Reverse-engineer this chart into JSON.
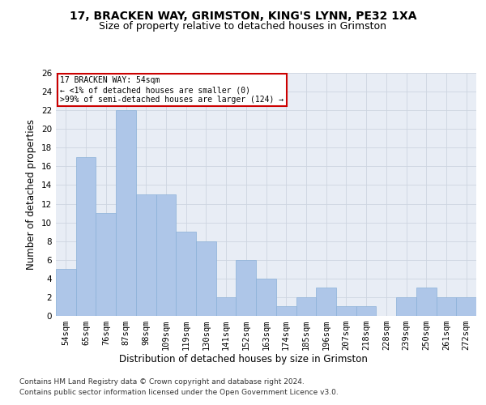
{
  "title1": "17, BRACKEN WAY, GRIMSTON, KING'S LYNN, PE32 1XA",
  "title2": "Size of property relative to detached houses in Grimston",
  "xlabel_bottom": "Distribution of detached houses by size in Grimston",
  "ylabel": "Number of detached properties",
  "footer1": "Contains HM Land Registry data © Crown copyright and database right 2024.",
  "footer2": "Contains public sector information licensed under the Open Government Licence v3.0.",
  "categories": [
    "54sqm",
    "65sqm",
    "76sqm",
    "87sqm",
    "98sqm",
    "109sqm",
    "119sqm",
    "130sqm",
    "141sqm",
    "152sqm",
    "163sqm",
    "174sqm",
    "185sqm",
    "196sqm",
    "207sqm",
    "218sqm",
    "228sqm",
    "239sqm",
    "250sqm",
    "261sqm",
    "272sqm"
  ],
  "values": [
    5,
    17,
    11,
    22,
    13,
    13,
    9,
    8,
    2,
    6,
    4,
    1,
    2,
    3,
    1,
    1,
    0,
    2,
    3,
    2,
    2
  ],
  "bar_color": "#aec6e8",
  "bar_edge_color": "#8ab0d8",
  "annotation_box_text": "17 BRACKEN WAY: 54sqm\n← <1% of detached houses are smaller (0)\n>99% of semi-detached houses are larger (124) →",
  "annotation_box_color": "#ffffff",
  "annotation_box_edge_color": "#cc0000",
  "ylim": [
    0,
    26
  ],
  "yticks": [
    0,
    2,
    4,
    6,
    8,
    10,
    12,
    14,
    16,
    18,
    20,
    22,
    24,
    26
  ],
  "grid_color": "#cdd5e0",
  "axes_bg_color": "#e8edf5",
  "title1_fontsize": 10,
  "title2_fontsize": 9,
  "tick_fontsize": 7.5,
  "ylabel_fontsize": 8.5,
  "xlabel_bottom_fontsize": 8.5,
  "footer_fontsize": 6.5
}
